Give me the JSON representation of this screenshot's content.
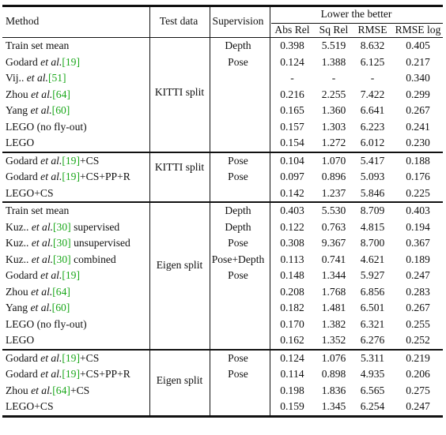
{
  "headers": {
    "method": "Method",
    "test_data": "Test data",
    "supervision": "Supervision",
    "lower_better": "Lower the better",
    "abs_rel": "Abs Rel",
    "sq_rel": "Sq Rel",
    "rmse": "RMSE",
    "rmse_log": "RMSE log"
  },
  "groups": [
    {
      "test_data": "KITTI split",
      "rows": [
        {
          "m_pre": "Train set mean",
          "cite": "",
          "m_post": "",
          "sup": "Depth",
          "abs": "0.398",
          "sq": "5.519",
          "rmse": "8.632",
          "rlog": "0.405"
        },
        {
          "m_pre": "Godard et al.",
          "cite": "[19]",
          "m_post": "",
          "sup": "Pose",
          "abs": "0.124",
          "sq": "1.388",
          "rmse": "6.125",
          "rlog": "0.217"
        },
        {
          "m_pre": "Vij.. et al.",
          "cite": "[51]",
          "m_post": "",
          "sup": "",
          "abs": "-",
          "sq": "-",
          "rmse": "-",
          "rlog": "0.340"
        },
        {
          "m_pre": "Zhou et al.",
          "cite": "[64]",
          "m_post": "",
          "sup": "",
          "abs": "0.216",
          "sq": "2.255",
          "rmse": "7.422",
          "rlog": "0.299"
        },
        {
          "m_pre": "Yang et al.",
          "cite": "[60]",
          "m_post": "",
          "sup": "",
          "abs": "0.165",
          "sq": "1.360",
          "rmse": "6.641",
          "rlog": "0.267"
        },
        {
          "m_pre": "LEGO (no fly-out)",
          "cite": "",
          "m_post": "",
          "sup": "",
          "abs": "0.157",
          "sq": "1.303",
          "rmse": "6.223",
          "rlog": "0.241"
        },
        {
          "m_pre": "LEGO",
          "cite": "",
          "m_post": "",
          "sup": "",
          "abs": "0.154",
          "sq": "1.272",
          "rmse": "6.012",
          "rlog": "0.230"
        }
      ]
    },
    {
      "test_data": "KITTI split",
      "rows": [
        {
          "m_pre": "Godard et al.",
          "cite": "[19]",
          "m_post": "+CS",
          "sup": "Pose",
          "abs": "0.104",
          "sq": "1.070",
          "rmse": "5.417",
          "rlog": "0.188"
        },
        {
          "m_pre": "Godard et al.",
          "cite": "[19]",
          "m_post": "+CS+PP+R",
          "sup": "Pose",
          "abs": "0.097",
          "sq": "0.896",
          "rmse": "5.093",
          "rlog": "0.176"
        },
        {
          "m_pre": "LEGO+CS",
          "cite": "",
          "m_post": "",
          "sup": "",
          "abs": "0.142",
          "sq": "1.237",
          "rmse": "5.846",
          "rlog": "0.225"
        }
      ]
    },
    {
      "test_data": "Eigen split",
      "rows": [
        {
          "m_pre": "Train set mean",
          "cite": "",
          "m_post": "",
          "sup": "Depth",
          "abs": "0.403",
          "sq": "5.530",
          "rmse": "8.709",
          "rlog": "0.403"
        },
        {
          "m_pre": "Kuz.. et al.",
          "cite": "[30]",
          "m_post": " supervised",
          "sup": "Depth",
          "abs": "0.122",
          "sq": "0.763",
          "rmse": "4.815",
          "rlog": "0.194"
        },
        {
          "m_pre": "Kuz.. et al.",
          "cite": "[30]",
          "m_post": " unsupervised",
          "sup": "Pose",
          "abs": "0.308",
          "sq": "9.367",
          "rmse": "8.700",
          "rlog": "0.367"
        },
        {
          "m_pre": "Kuz.. et al.",
          "cite": "[30]",
          "m_post": " combined",
          "sup": "Pose+Depth",
          "abs": "0.113",
          "sq": "0.741",
          "rmse": "4.621",
          "rlog": "0.189"
        },
        {
          "m_pre": "Godard et al.",
          "cite": "[19]",
          "m_post": "",
          "sup": "Pose",
          "abs": "0.148",
          "sq": "1.344",
          "rmse": "5.927",
          "rlog": "0.247"
        },
        {
          "m_pre": "Zhou et al.",
          "cite": "[64]",
          "m_post": "",
          "sup": "",
          "abs": "0.208",
          "sq": "1.768",
          "rmse": "6.856",
          "rlog": "0.283"
        },
        {
          "m_pre": "Yang et al.",
          "cite": "[60]",
          "m_post": "",
          "sup": "",
          "abs": "0.182",
          "sq": "1.481",
          "rmse": "6.501",
          "rlog": "0.267"
        },
        {
          "m_pre": "LEGO (no fly-out)",
          "cite": "",
          "m_post": "",
          "sup": "",
          "abs": "0.170",
          "sq": "1.382",
          "rmse": "6.321",
          "rlog": "0.255"
        },
        {
          "m_pre": "LEGO",
          "cite": "",
          "m_post": "",
          "sup": "",
          "abs": "0.162",
          "sq": "1.352",
          "rmse": "6.276",
          "rlog": "0.252"
        }
      ]
    },
    {
      "test_data": "Eigen split",
      "rows": [
        {
          "m_pre": "Godard et al.",
          "cite": "[19]",
          "m_post": "+CS",
          "sup": "Pose",
          "abs": "0.124",
          "sq": "1.076",
          "rmse": "5.311",
          "rlog": "0.219"
        },
        {
          "m_pre": "Godard et al.",
          "cite": "[19]",
          "m_post": "+CS+PP+R",
          "sup": "Pose",
          "abs": "0.114",
          "sq": "0.898",
          "rmse": "4.935",
          "rlog": "0.206"
        },
        {
          "m_pre": "Zhou et al.",
          "cite": "[64]",
          "m_post": "+CS",
          "sup": "",
          "abs": "0.198",
          "sq": "1.836",
          "rmse": "6.565",
          "rlog": "0.275"
        },
        {
          "m_pre": "LEGO+CS",
          "cite": "",
          "m_post": "",
          "sup": "",
          "abs": "0.159",
          "sq": "1.345",
          "rmse": "6.254",
          "rlog": "0.247"
        }
      ]
    }
  ],
  "colors": {
    "citation": "#1aa71a",
    "text": "#111111"
  }
}
